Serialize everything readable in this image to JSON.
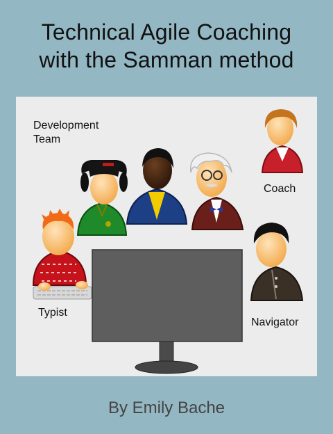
{
  "cover": {
    "title_line1": "Technical Agile Coaching",
    "title_line2": "with the Samman method",
    "author": "By Emily Bache"
  },
  "scene": {
    "team_label_line1": "Development",
    "team_label_line2": "Team",
    "coach_label": "Coach",
    "typist_label": "Typist",
    "navigator_label": "Navigator"
  },
  "colors": {
    "background": "#93b7c3",
    "panel": "#ececec",
    "monitor": "#5e5e5e"
  }
}
